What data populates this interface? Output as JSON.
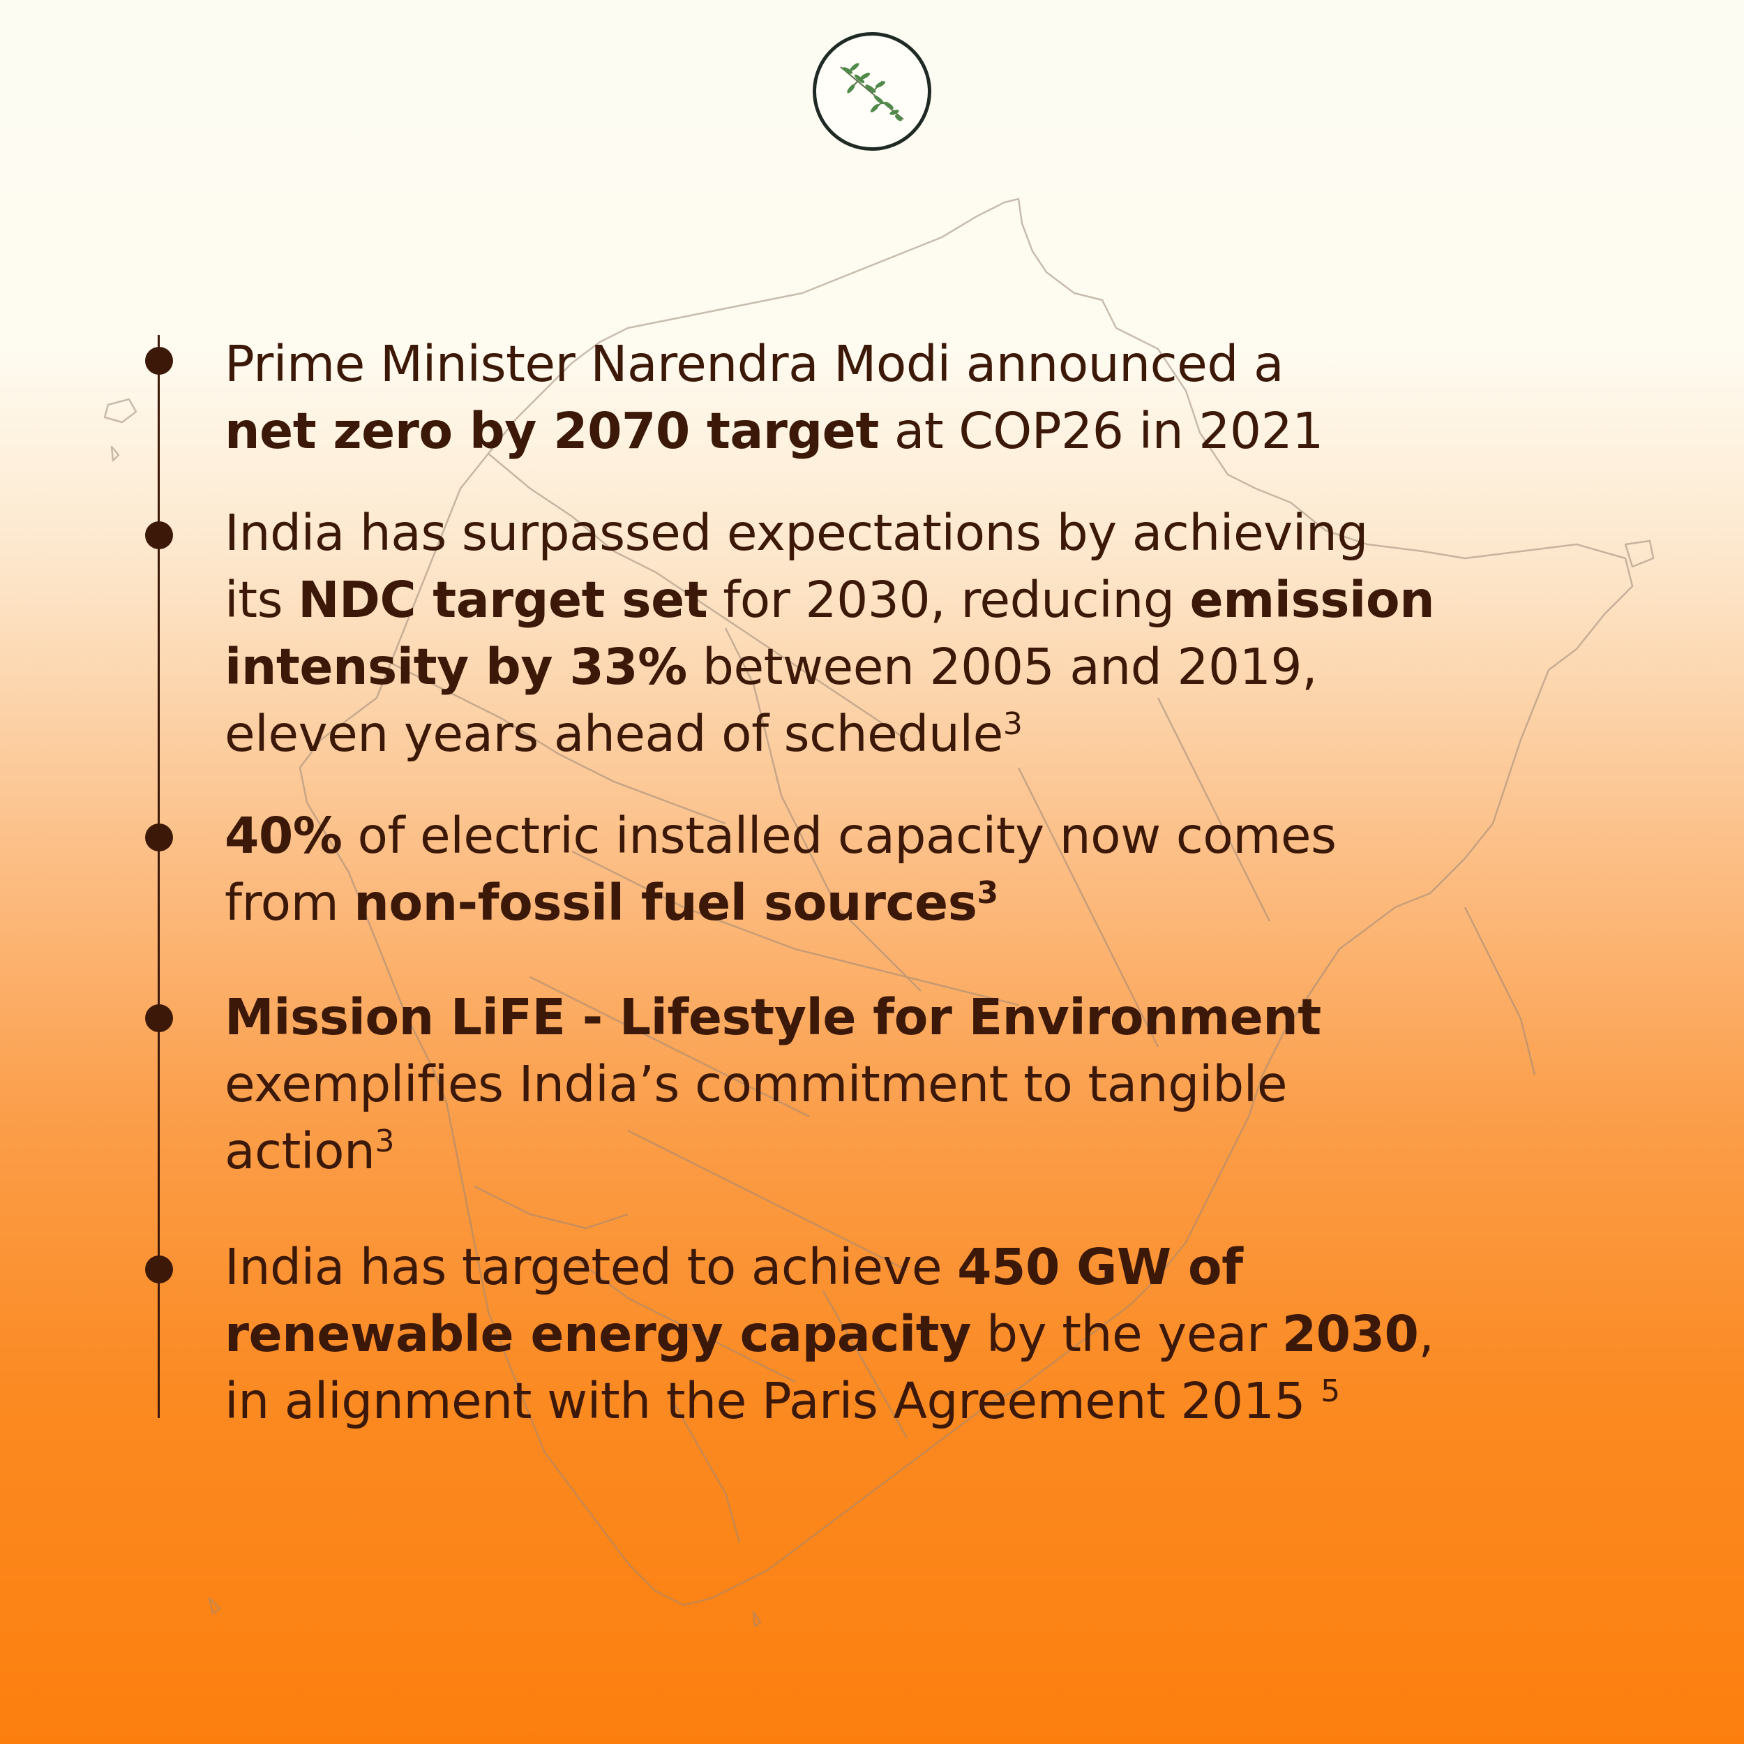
{
  "colors": {
    "text": "#3b1808",
    "accent_orange": "#fc7f0e",
    "logo_ring": "#1f2a24",
    "logo_leaf": "#4f8a4a"
  },
  "logo": {
    "icon": "plant-sprig-icon"
  },
  "items": [
    {
      "lines": [
        [
          {
            "t": "Prime Minister Narendra Modi announced a",
            "b": false
          }
        ],
        [
          {
            "t": "net zero by 2070 target",
            "b": true
          },
          {
            "t": " at COP26 in 2021",
            "b": false
          }
        ]
      ]
    },
    {
      "lines": [
        [
          {
            "t": "India has surpassed expectations by achieving",
            "b": false
          }
        ],
        [
          {
            "t": "its ",
            "b": false
          },
          {
            "t": "NDC target set",
            "b": true
          },
          {
            "t": " for 2030, reducing ",
            "b": false
          },
          {
            "t": "emission",
            "b": true
          }
        ],
        [
          {
            "t": "intensity by 33%",
            "b": true
          },
          {
            "t": " between 2005 and 2019,",
            "b": false
          }
        ],
        [
          {
            "t": "eleven years ahead of schedule",
            "b": false
          },
          {
            "t": "3",
            "b": false,
            "sup": true
          }
        ]
      ]
    },
    {
      "lines": [
        [
          {
            "t": "40%",
            "b": true
          },
          {
            "t": " of electric installed capacity now comes",
            "b": false
          }
        ],
        [
          {
            "t": "from ",
            "b": false
          },
          {
            "t": "non-fossil fuel sources",
            "b": true
          },
          {
            "t": "3",
            "b": true,
            "sup": true
          }
        ]
      ]
    },
    {
      "lines": [
        [
          {
            "t": "Mission LiFE - Lifestyle for Environment",
            "b": true
          }
        ],
        [
          {
            "t": "exemplifies India’s commitment to tangible",
            "b": false
          }
        ],
        [
          {
            "t": "action",
            "b": false
          },
          {
            "t": "3",
            "b": false,
            "sup": true
          }
        ]
      ]
    },
    {
      "lines": [
        [
          {
            "t": "India has targeted to achieve ",
            "b": false
          },
          {
            "t": "450 GW of",
            "b": true
          }
        ],
        [
          {
            "t": "renewable energy capacity",
            "b": true
          },
          {
            "t": " by the year ",
            "b": false
          },
          {
            "t": "2030",
            "b": true
          },
          {
            "t": ",",
            "b": false
          }
        ],
        [
          {
            "t": "in alignment with the Paris Agreement 2015 ",
            "b": false
          },
          {
            "t": "5",
            "b": false,
            "sup": true
          }
        ]
      ]
    }
  ]
}
